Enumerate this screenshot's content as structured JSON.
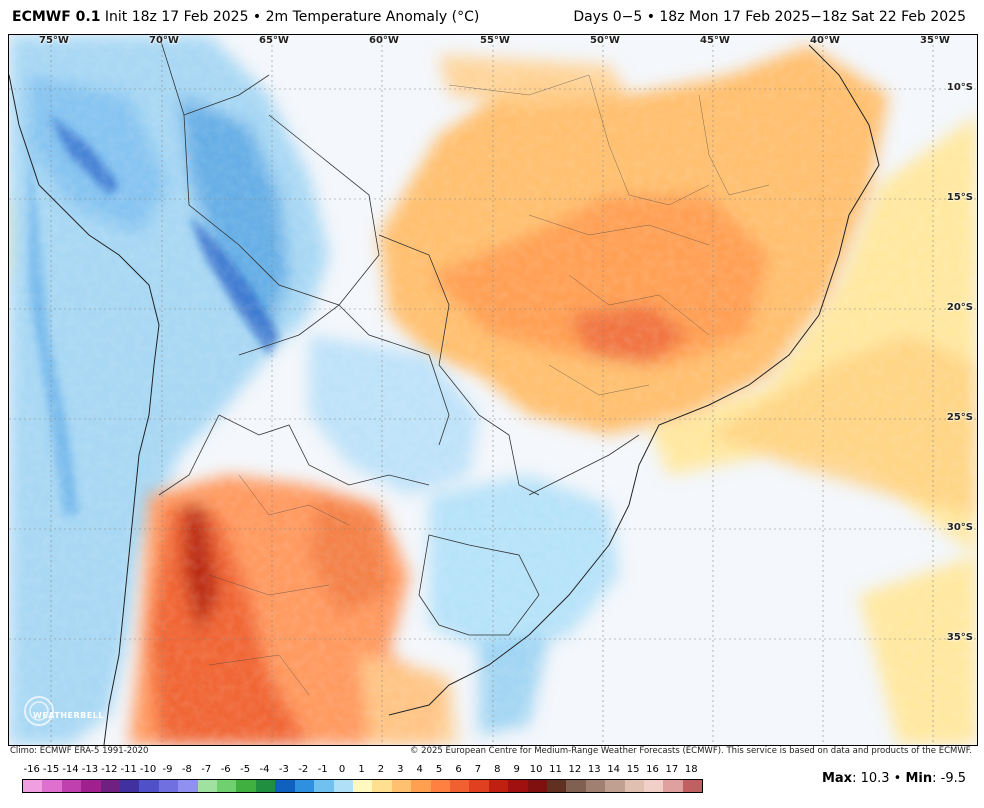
{
  "header": {
    "model": "ECMWF 0.1",
    "degree": "°",
    "init": " Init 18z 17 Feb 2025 • 2m Temperature Anomaly (°C)",
    "valid": "Days 0−5 • 18z Mon 17 Feb 2025−18z Sat 22 Feb 2025"
  },
  "map": {
    "longitudes": [
      "75°W",
      "70°W",
      "65°W",
      "60°W",
      "55°W",
      "50°W",
      "45°W",
      "40°W",
      "35°W"
    ],
    "latitudes": [
      "10°S",
      "15°S",
      "20°S",
      "25°S",
      "30°S",
      "35°S"
    ],
    "logo_text": "WEATHERBELL"
  },
  "footer": {
    "climo": "Climo: ECMWF ERA-5 1991-2020",
    "copyright": "© 2025 European Centre for Medium-Range Weather Forecasts (ECMWF). This service is based on data and products of the ECMWF."
  },
  "legend": {
    "ticks": [
      "-16",
      "-15",
      "-14",
      "-13",
      "-12",
      "-11",
      "-10",
      "-9",
      "-8",
      "-7",
      "-6",
      "-5",
      "-4",
      "-3",
      "-2",
      "-1",
      "0",
      "1",
      "2",
      "3",
      "4",
      "5",
      "6",
      "7",
      "8",
      "9",
      "10",
      "11",
      "12",
      "13",
      "14",
      "15",
      "16",
      "17",
      "18"
    ],
    "colors": [
      "#f0a0e0",
      "#e070d0",
      "#c040b0",
      "#a02090",
      "#702080",
      "#4030a0",
      "#5050c8",
      "#7070e0",
      "#9090f0",
      "#a0e0a0",
      "#70d070",
      "#40b040",
      "#209040",
      "#1060c0",
      "#3090e0",
      "#70c0f0",
      "#b0e0f8",
      "#fff8c0",
      "#ffe090",
      "#ffc070",
      "#ffa050",
      "#ff8040",
      "#f06030",
      "#e04020",
      "#c02010",
      "#a01010",
      "#801010",
      "#603020",
      "#806050",
      "#a08070",
      "#c0a090",
      "#e0c0b0",
      "#f0d0c8",
      "#e0a0a0",
      "#c06060"
    ],
    "max_label": "Max",
    "max_value": ": 10.3 • ",
    "min_label": "Min",
    "min_value": ": -9.5"
  }
}
